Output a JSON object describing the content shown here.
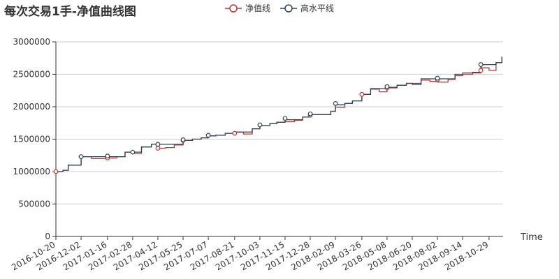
{
  "chart_data": {
    "type": "line",
    "title": "每次交易1手-净值曲线图",
    "xlabel": "Time",
    "ylabel": "",
    "ylim": [
      0,
      3000000
    ],
    "y_ticks": [
      "0",
      "500000",
      "1000000",
      "1500000",
      "2000000",
      "2500000",
      "3000000"
    ],
    "x_tick_labels": [
      "2016-10-20",
      "2016-12-02",
      "2017-01-16",
      "2017-02-28",
      "2017-04-12",
      "2017-05-25",
      "2017-07-07",
      "2017-08-21",
      "2017-10-03",
      "2017-11-15",
      "2017-12-28",
      "2018-02-09",
      "2018-03-26",
      "2018-05-08",
      "2018-06-20",
      "2018-08-02",
      "2018-09-14",
      "2018-10-29"
    ],
    "grid": "horizontal",
    "legend_position": "top-center",
    "series": [
      {
        "name": "净值线",
        "color": "#c23531",
        "x": [
          "2016-10-20",
          "2016-11-01",
          "2016-11-10",
          "2016-12-02",
          "2016-12-20",
          "2017-01-16",
          "2017-02-01",
          "2017-02-15",
          "2017-02-28",
          "2017-03-15",
          "2017-04-01",
          "2017-04-12",
          "2017-04-25",
          "2017-05-10",
          "2017-05-25",
          "2017-06-10",
          "2017-06-25",
          "2017-07-07",
          "2017-07-20",
          "2017-08-05",
          "2017-08-21",
          "2017-09-05",
          "2017-09-20",
          "2017-10-03",
          "2017-10-20",
          "2017-11-01",
          "2017-11-15",
          "2017-12-01",
          "2017-12-15",
          "2017-12-28",
          "2018-01-15",
          "2018-02-01",
          "2018-02-09",
          "2018-02-25",
          "2018-03-10",
          "2018-03-26",
          "2018-04-10",
          "2018-04-25",
          "2018-05-08",
          "2018-05-25",
          "2018-06-10",
          "2018-06-20",
          "2018-07-05",
          "2018-07-20",
          "2018-08-02",
          "2018-08-20",
          "2018-09-01",
          "2018-09-14",
          "2018-10-01",
          "2018-10-15",
          "2018-10-29",
          "2018-11-10",
          "2018-11-20"
        ],
        "values": [
          1000000,
          1020000,
          1100000,
          1230000,
          1200000,
          1210000,
          1230000,
          1300000,
          1280000,
          1380000,
          1420000,
          1360000,
          1370000,
          1410000,
          1480000,
          1500000,
          1520000,
          1550000,
          1560000,
          1590000,
          1610000,
          1580000,
          1660000,
          1710000,
          1740000,
          1760000,
          1770000,
          1790000,
          1840000,
          1880000,
          1880000,
          1930000,
          1990000,
          2050000,
          2090000,
          2190000,
          2270000,
          2230000,
          2290000,
          2330000,
          2360000,
          2340000,
          2410000,
          2390000,
          2380000,
          2420000,
          2480000,
          2500000,
          2520000,
          2600000,
          2560000,
          2680000,
          2770000
        ]
      },
      {
        "name": "高水平线",
        "color": "#2f4554",
        "x": [
          "2016-10-20",
          "2016-11-01",
          "2016-11-10",
          "2016-12-02",
          "2017-02-15",
          "2017-03-15",
          "2017-04-01",
          "2017-05-25",
          "2017-06-10",
          "2017-06-25",
          "2017-07-07",
          "2017-07-20",
          "2017-08-05",
          "2017-08-21",
          "2017-09-20",
          "2017-10-03",
          "2017-10-20",
          "2017-11-01",
          "2017-11-15",
          "2017-12-15",
          "2017-12-28",
          "2018-02-01",
          "2018-02-09",
          "2018-02-25",
          "2018-03-10",
          "2018-03-26",
          "2018-04-10",
          "2018-05-08",
          "2018-05-25",
          "2018-06-10",
          "2018-07-05",
          "2018-09-01",
          "2018-09-14",
          "2018-10-01",
          "2018-10-15",
          "2018-11-10",
          "2018-11-20"
        ],
        "values": [
          1000000,
          1020000,
          1100000,
          1230000,
          1300000,
          1380000,
          1420000,
          1480000,
          1500000,
          1520000,
          1550000,
          1560000,
          1590000,
          1610000,
          1660000,
          1710000,
          1740000,
          1760000,
          1800000,
          1840000,
          1880000,
          1930000,
          2030000,
          2050000,
          2090000,
          2190000,
          2280000,
          2300000,
          2330000,
          2360000,
          2430000,
          2500000,
          2520000,
          2530000,
          2650000,
          2680000,
          2770000
        ]
      }
    ],
    "markers": [
      {
        "series": 0,
        "x": "2016-10-20",
        "y": 1000000
      },
      {
        "series": 0,
        "x": "2016-12-02",
        "y": 1230000
      },
      {
        "series": 0,
        "x": "2017-01-16",
        "y": 1210000
      },
      {
        "series": 0,
        "x": "2017-04-12",
        "y": 1360000
      },
      {
        "series": 0,
        "x": "2017-05-25",
        "y": 1480000
      },
      {
        "series": 0,
        "x": "2017-08-21",
        "y": 1590000
      },
      {
        "series": 0,
        "x": "2017-12-28",
        "y": 1870000
      },
      {
        "series": 0,
        "x": "2018-03-26",
        "y": 2190000
      },
      {
        "series": 0,
        "x": "2018-05-08",
        "y": 2290000
      },
      {
        "series": 0,
        "x": "2018-08-02",
        "y": 2420000
      },
      {
        "series": 0,
        "x": "2018-10-15",
        "y": 2560000
      },
      {
        "series": 1,
        "x": "2016-12-02",
        "y": 1230000
      },
      {
        "series": 1,
        "x": "2017-01-16",
        "y": 1240000
      },
      {
        "series": 1,
        "x": "2017-02-28",
        "y": 1300000
      },
      {
        "series": 1,
        "x": "2017-04-12",
        "y": 1420000
      },
      {
        "series": 1,
        "x": "2017-05-25",
        "y": 1490000
      },
      {
        "series": 1,
        "x": "2017-07-07",
        "y": 1560000
      },
      {
        "series": 1,
        "x": "2017-10-03",
        "y": 1720000
      },
      {
        "series": 1,
        "x": "2017-11-15",
        "y": 1820000
      },
      {
        "series": 1,
        "x": "2017-12-28",
        "y": 1890000
      },
      {
        "series": 1,
        "x": "2018-02-09",
        "y": 2050000
      },
      {
        "series": 1,
        "x": "2018-05-08",
        "y": 2310000
      },
      {
        "series": 1,
        "x": "2018-08-02",
        "y": 2440000
      },
      {
        "series": 1,
        "x": "2018-10-15",
        "y": 2650000
      }
    ]
  },
  "legend": [
    {
      "label": "净值线",
      "color": "#c23531"
    },
    {
      "label": "高水平线",
      "color": "#2f4554"
    }
  ]
}
